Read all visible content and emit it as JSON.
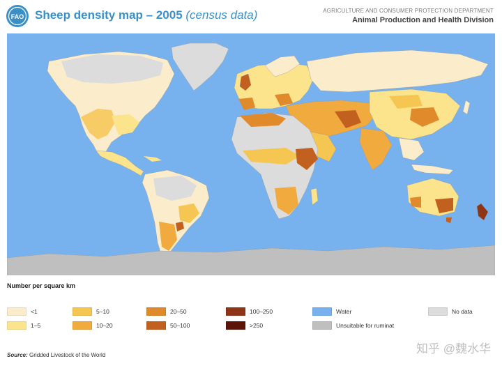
{
  "header": {
    "logo_text": "FAO",
    "title_main": "Sheep density map – 2005",
    "title_sub": "(census data)",
    "dept_line1": "AGRICULTURE AND CONSUMER PROTECTION DEPARTMENT",
    "dept_line2": "Animal Production and Health Division"
  },
  "colors": {
    "water": "#77b2ee",
    "no_data": "#dcdcdc",
    "unsuitable": "#bfbfbf",
    "lt1": "#fbeccb",
    "d1_5": "#fbe48c",
    "d5_10": "#f6c653",
    "d10_20": "#f0aa3d",
    "d20_50": "#e08a2c",
    "d50_100": "#c26020",
    "d100_250": "#8e3417",
    "gt250": "#5c1408",
    "title_blue": "#3a8fc7"
  },
  "legend": {
    "title": "Number per square km",
    "items": [
      {
        "label": "<1",
        "color": "#fbeccb"
      },
      {
        "label": "1–5",
        "color": "#fbe48c"
      },
      {
        "label": "5–10",
        "color": "#f6c653"
      },
      {
        "label": "10–20",
        "color": "#f0aa3d"
      },
      {
        "label": "20–50",
        "color": "#e08a2c"
      },
      {
        "label": "50–100",
        "color": "#c26020"
      },
      {
        "label": "100–250",
        "color": "#8e3417"
      },
      {
        "label": ">250",
        "color": "#5c1408"
      },
      {
        "label": "Water",
        "color": "#77b2ee"
      },
      {
        "label": "Unsuitable for ruminat",
        "color": "#bfbfbf"
      },
      {
        "label": "No data",
        "color": "#dcdcdc"
      }
    ]
  },
  "source": {
    "label": "Source:",
    "text": "Gridded Livestock of the World"
  },
  "watermark": "知乎 @魏水华"
}
